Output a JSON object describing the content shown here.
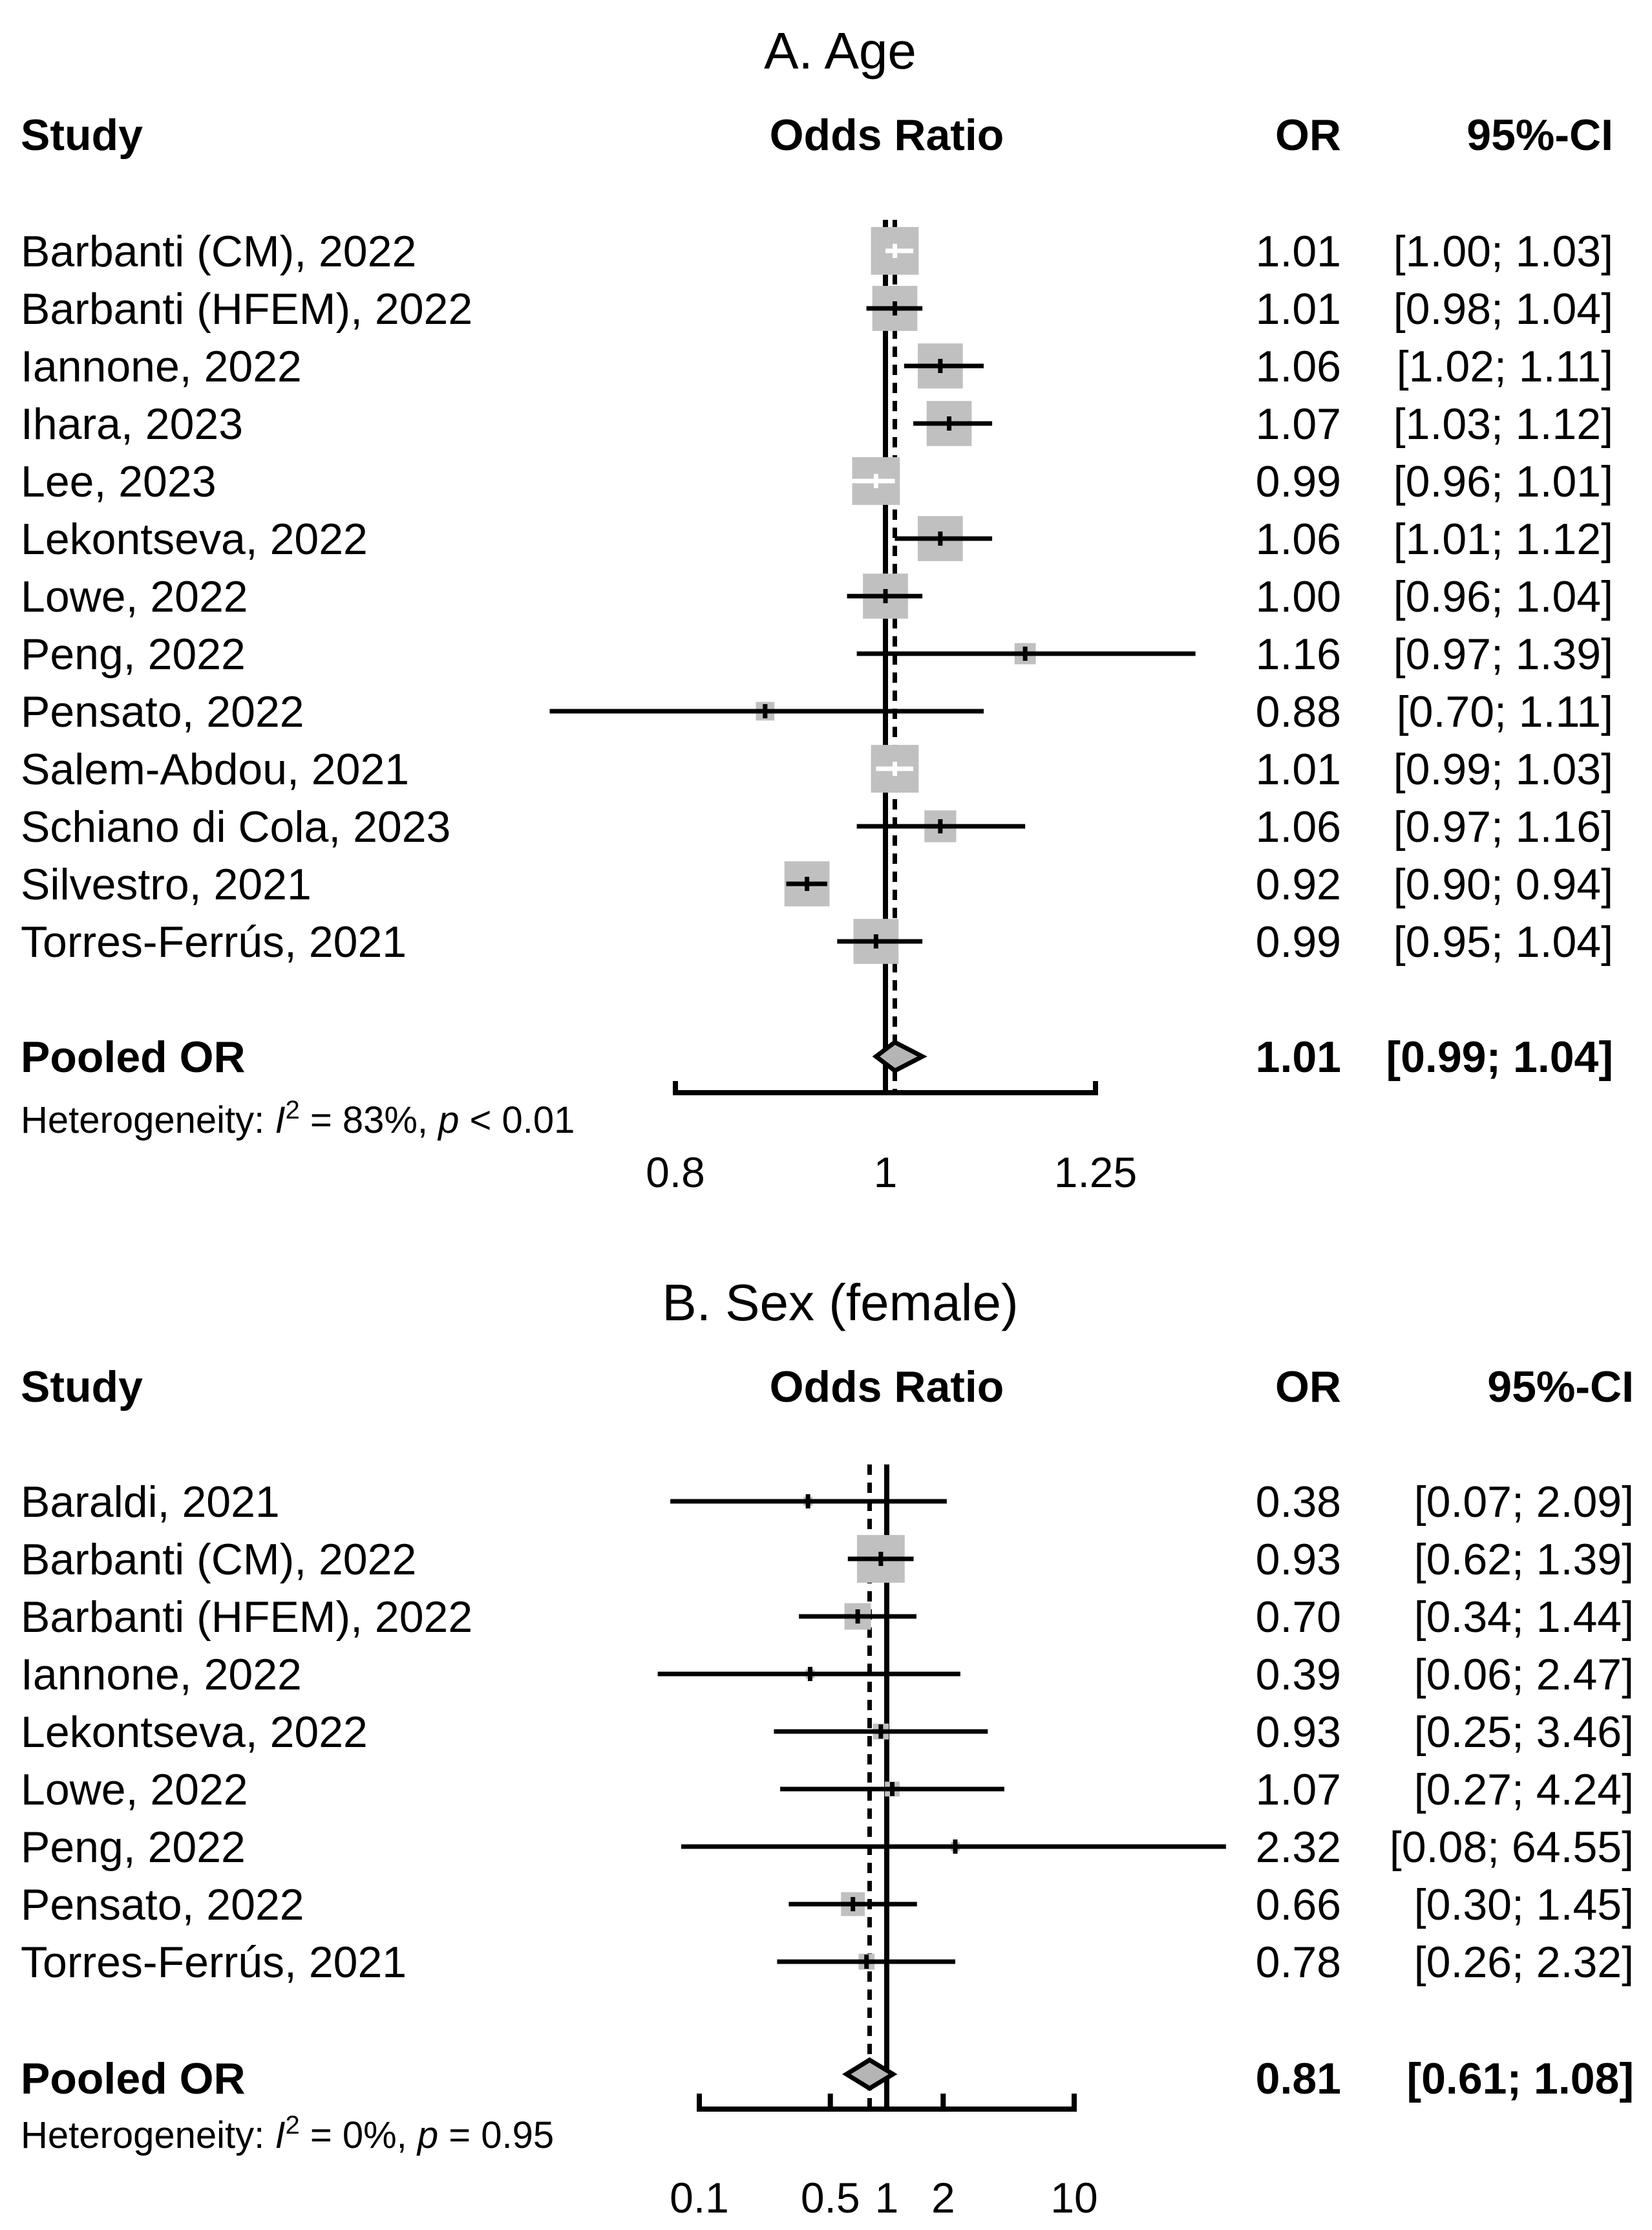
{
  "chart_data": [
    {
      "type": "forest",
      "title": "A. Age",
      "headers": {
        "study": "Study",
        "effect": "Odds Ratio",
        "or": "OR",
        "ci": "95%-CI"
      },
      "scale": "log",
      "xlim": [
        0.8,
        1.25
      ],
      "ticks": [
        "0.8",
        "1",
        "1.25"
      ],
      "null_value": 1,
      "pooled_value": 1.01,
      "rows": [
        {
          "study": "Barbanti (CM), 2022",
          "or": 1.01,
          "lo": 1.0,
          "hi": 1.03,
          "or_text": "1.01",
          "ci_text": "[1.00; 1.03]",
          "weight": 0.9,
          "ci_white": true
        },
        {
          "study": "Barbanti (HFEM), 2022",
          "or": 1.01,
          "lo": 0.98,
          "hi": 1.04,
          "or_text": "1.01",
          "ci_text": "[0.98; 1.04]",
          "weight": 0.85,
          "ci_white": false
        },
        {
          "study": "Iannone, 2022",
          "or": 1.06,
          "lo": 1.02,
          "hi": 1.11,
          "or_text": "1.06",
          "ci_text": "[1.02; 1.11]",
          "weight": 0.85,
          "ci_white": false
        },
        {
          "study": "Ihara, 2023",
          "or": 1.07,
          "lo": 1.03,
          "hi": 1.12,
          "or_text": "1.07",
          "ci_text": "[1.03; 1.12]",
          "weight": 0.85,
          "ci_white": false
        },
        {
          "study": "Lee, 2023",
          "or": 0.99,
          "lo": 0.96,
          "hi": 1.01,
          "or_text": "0.99",
          "ci_text": "[0.96; 1.01]",
          "weight": 0.9,
          "ci_white": true
        },
        {
          "study": "Lekontseva, 2022",
          "or": 1.06,
          "lo": 1.01,
          "hi": 1.12,
          "or_text": "1.06",
          "ci_text": "[1.01; 1.12]",
          "weight": 0.85,
          "ci_white": false
        },
        {
          "study": "Lowe, 2022",
          "or": 1.0,
          "lo": 0.96,
          "hi": 1.04,
          "or_text": "1.00",
          "ci_text": "[0.96; 1.04]",
          "weight": 0.85,
          "ci_white": false
        },
        {
          "study": "Peng, 2022",
          "or": 1.16,
          "lo": 0.97,
          "hi": 1.39,
          "or_text": "1.16",
          "ci_text": "[0.97; 1.39]",
          "weight": 0.4,
          "ci_white": false
        },
        {
          "study": "Pensato, 2022",
          "or": 0.88,
          "lo": 0.7,
          "hi": 1.11,
          "or_text": "0.88",
          "ci_text": "[0.70; 1.11]",
          "weight": 0.35,
          "ci_white": false
        },
        {
          "study": "Salem-Abdou, 2021",
          "or": 1.01,
          "lo": 0.99,
          "hi": 1.03,
          "or_text": "1.01",
          "ci_text": "[0.99; 1.03]",
          "weight": 0.9,
          "ci_white": true
        },
        {
          "study": "Schiano di Cola, 2023",
          "or": 1.06,
          "lo": 0.97,
          "hi": 1.16,
          "or_text": "1.06",
          "ci_text": "[0.97; 1.16]",
          "weight": 0.6,
          "ci_white": false
        },
        {
          "study": "Silvestro, 2021",
          "or": 0.92,
          "lo": 0.9,
          "hi": 0.94,
          "or_text": "0.92",
          "ci_text": "[0.90; 0.94]",
          "weight": 0.85,
          "ci_white": false
        },
        {
          "study": "Torres-Ferrús, 2021",
          "or": 0.99,
          "lo": 0.95,
          "hi": 1.04,
          "or_text": "0.99",
          "ci_text": "[0.95; 1.04]",
          "weight": 0.85,
          "ci_white": false
        }
      ],
      "pooled": {
        "label": "Pooled OR",
        "or": 1.01,
        "lo": 0.99,
        "hi": 1.04,
        "or_text": "1.01",
        "ci_text": "[0.99; 1.04]"
      },
      "heterogeneity": {
        "prefix": "Heterogeneity: ",
        "symbol": "I",
        "sup": "2",
        "middle": " = 83%, ",
        "p": "p",
        "suffix": " < 0.01"
      }
    },
    {
      "type": "forest",
      "title": "B. Sex (female)",
      "headers": {
        "study": "Study",
        "effect": "Odds Ratio",
        "or": "OR",
        "ci": "95%-CI"
      },
      "scale": "log",
      "xlim": [
        0.1,
        10
      ],
      "ticks": [
        "0.1",
        "0.5",
        "1",
        "2",
        "10"
      ],
      "null_value": 1,
      "pooled_value": 0.81,
      "rows": [
        {
          "study": "Baraldi, 2021",
          "or": 0.38,
          "lo": 0.07,
          "hi": 2.09,
          "or_text": "0.38",
          "ci_text": "[0.07;  2.09]",
          "weight": 0.15,
          "ci_white": false
        },
        {
          "study": "Barbanti (CM), 2022",
          "or": 0.93,
          "lo": 0.62,
          "hi": 1.39,
          "or_text": "0.93",
          "ci_text": "[0.62;  1.39]",
          "weight": 0.9,
          "ci_white": false
        },
        {
          "study": "Barbanti (HFEM), 2022",
          "or": 0.7,
          "lo": 0.34,
          "hi": 1.44,
          "or_text": "0.70",
          "ci_text": "[0.34;  1.44]",
          "weight": 0.5,
          "ci_white": false
        },
        {
          "study": "Iannone, 2022",
          "or": 0.39,
          "lo": 0.06,
          "hi": 2.47,
          "or_text": "0.39",
          "ci_text": "[0.06;  2.47]",
          "weight": 0.15,
          "ci_white": false
        },
        {
          "study": "Lekontseva, 2022",
          "or": 0.93,
          "lo": 0.25,
          "hi": 3.46,
          "or_text": "0.93",
          "ci_text": "[0.25;  3.46]",
          "weight": 0.3,
          "ci_white": false
        },
        {
          "study": "Lowe, 2022",
          "or": 1.07,
          "lo": 0.27,
          "hi": 4.24,
          "or_text": "1.07",
          "ci_text": "[0.27;  4.24]",
          "weight": 0.28,
          "ci_white": false
        },
        {
          "study": "Peng, 2022",
          "or": 2.32,
          "lo": 0.08,
          "hi": 64.55,
          "or_text": "2.32",
          "ci_text": "[0.08; 64.55]",
          "weight": 0.05,
          "ci_white": false
        },
        {
          "study": "Pensato, 2022",
          "or": 0.66,
          "lo": 0.3,
          "hi": 1.45,
          "or_text": "0.66",
          "ci_text": "[0.30;  1.45]",
          "weight": 0.45,
          "ci_white": false
        },
        {
          "study": "Torres-Ferrús, 2021",
          "or": 0.78,
          "lo": 0.26,
          "hi": 2.32,
          "or_text": "0.78",
          "ci_text": "[0.26;  2.32]",
          "weight": 0.3,
          "ci_white": false
        }
      ],
      "pooled": {
        "label": "Pooled OR",
        "or": 0.81,
        "lo": 0.61,
        "hi": 1.08,
        "or_text": "0.81",
        "ci_text": "[0.61;  1.08]"
      },
      "heterogeneity": {
        "prefix": "Heterogeneity:  ",
        "symbol": "I",
        "sup": "2",
        "middle": " = 0%, ",
        "p": "p",
        "suffix": " = 0.95"
      }
    }
  ]
}
